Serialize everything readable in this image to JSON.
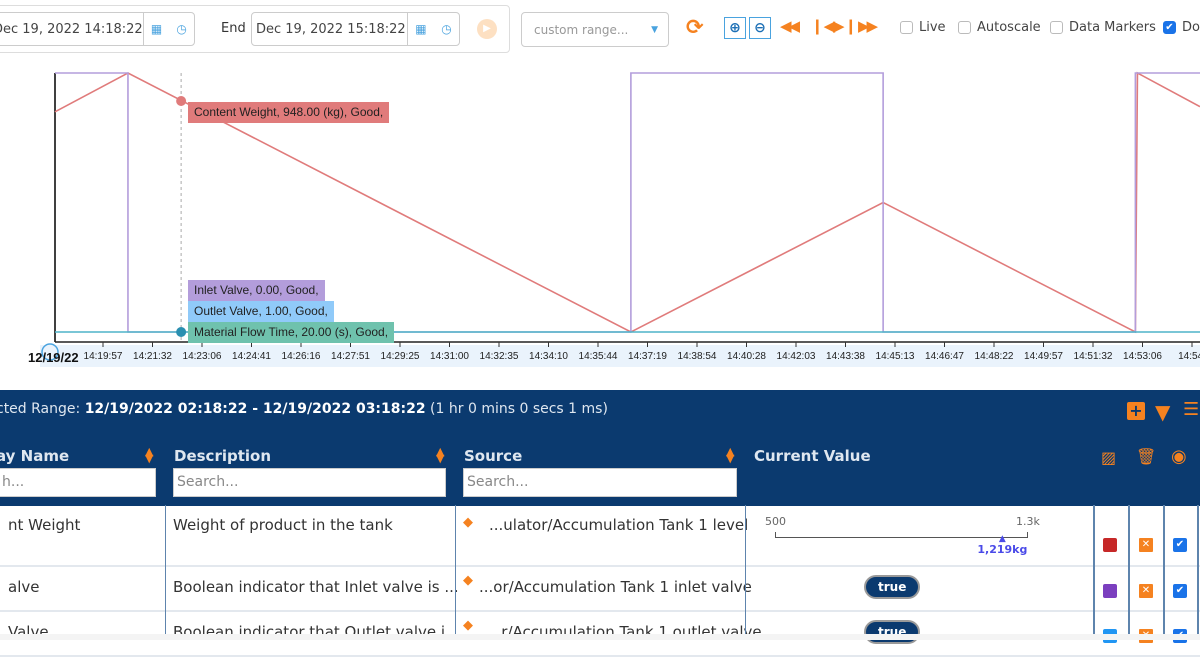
{
  "toolbar": {
    "start_value": "Dec 19, 2022 14:18:22",
    "end_label": "End",
    "end_value": "Dec 19, 2022 15:18:22",
    "range_select": "custom range...",
    "checkboxes": [
      {
        "label": "Live",
        "checked": false
      },
      {
        "label": "Autoscale",
        "checked": false
      },
      {
        "label": "Data Markers",
        "checked": false
      },
      {
        "label": "Do",
        "checked": true
      }
    ]
  },
  "chart_data": {
    "type": "line",
    "date_label": "12/19/22",
    "x_ticks": [
      "14:19:57",
      "14:21:32",
      "14:23:06",
      "14:24:41",
      "14:26:16",
      "14:27:51",
      "14:29:25",
      "14:31:00",
      "14:32:35",
      "14:34:10",
      "14:35:44",
      "14:37:19",
      "14:38:54",
      "14:40:28",
      "14:42:03",
      "14:43:38",
      "14:45:13",
      "14:46:47",
      "14:48:22",
      "14:49:57",
      "14:51:32",
      "14:53:06",
      "14:54:"
    ],
    "xlim": [
      "14:18:22",
      "14:54:59"
    ],
    "cursor_time": "14:22:24",
    "series": [
      {
        "name": "Content Weight",
        "color": "#e07b7b",
        "points": [
          [
            "14:18:22",
            0.85
          ],
          [
            "14:20:42",
            1.0
          ],
          [
            "14:36:47",
            0.0
          ],
          [
            "14:44:51",
            0.5
          ],
          [
            "14:52:55",
            0.0
          ],
          [
            "14:52:59",
            1.0
          ],
          [
            "14:54:59",
            0.87
          ]
        ]
      },
      {
        "name": "Inlet Valve",
        "color": "#b39ddb",
        "points": [
          [
            "14:18:22",
            1
          ],
          [
            "14:20:42",
            1
          ],
          [
            "14:20:42",
            0
          ],
          [
            "14:36:47",
            0
          ],
          [
            "14:36:47",
            1
          ],
          [
            "14:44:51",
            1
          ],
          [
            "14:44:51",
            0
          ],
          [
            "14:52:55",
            0
          ],
          [
            "14:52:55",
            1
          ],
          [
            "14:54:59",
            1
          ]
        ]
      },
      {
        "name": "Material Flow Time",
        "color": "#4fb3c8",
        "points": [
          [
            "14:18:22",
            0
          ],
          [
            "14:54:59",
            0
          ]
        ]
      }
    ],
    "tooltips": [
      {
        "text": "Content Weight, 948.00 (kg), Good,",
        "color": "#e07b7b"
      },
      {
        "text": "Inlet Valve, 0.00, Good,",
        "color": "#b39ddb"
      },
      {
        "text": "Outlet Valve, 1.00, Good,",
        "color": "#90caf9"
      },
      {
        "text": "Material Flow Time, 20.00 (s), Good,",
        "color": "#6fc2ad"
      }
    ]
  },
  "panel": {
    "range_prefix": "cted Range: ",
    "range_value": "12/19/2022 02:18:22 - 12/19/2022 03:18:22",
    "range_duration": " (1 hr 0 mins 0 secs 1 ms)",
    "columns": [
      "ay Name",
      "Description",
      "Source",
      "Current Value"
    ],
    "search_placeholders": [
      "h...",
      "Search...",
      "Search..."
    ]
  },
  "rows": [
    {
      "name": "nt Weight",
      "description": "Weight of product in the tank",
      "source": "...ulator/Accumulation Tank 1 level",
      "color": "#c62828",
      "visible": true,
      "gauge": {
        "min_label": "500",
        "max_label": "1.3k",
        "min": 500,
        "max": 1300,
        "value": 1219,
        "value_label": "1,219kg"
      }
    },
    {
      "name": "alve",
      "description": "Boolean indicator that Inlet valve is ...",
      "source": "...or/Accumulation Tank 1 inlet valve",
      "color": "#7b3fbf",
      "visible": true,
      "value": "true"
    },
    {
      "name": "Valve",
      "description": "Boolean indicator that Outlet valve i...",
      "source": "...r/Accumulation Tank 1 outlet valve",
      "color": "#2196f3",
      "visible": true,
      "value": "true"
    }
  ]
}
